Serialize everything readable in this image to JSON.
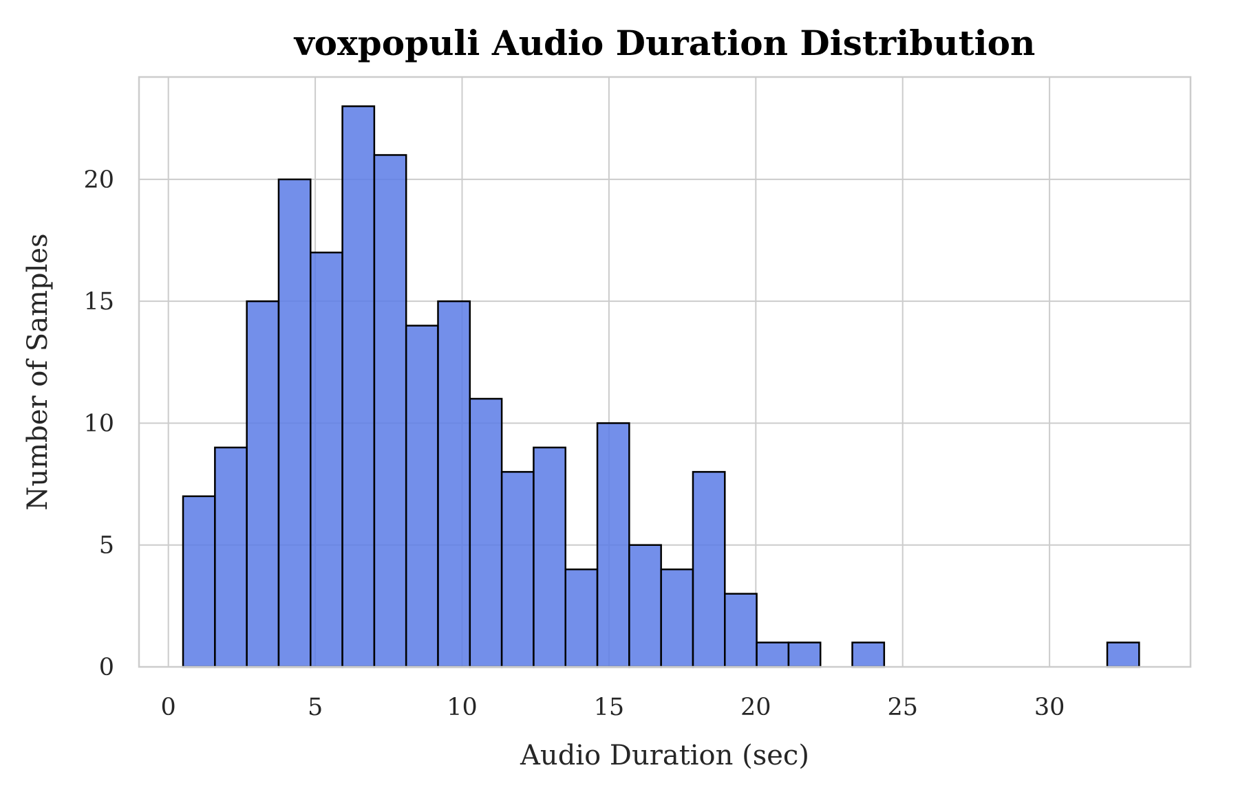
{
  "chart_data": {
    "type": "bar",
    "title": "voxpopuli Audio Duration Distribution",
    "xlabel": "Audio Duration (sec)",
    "ylabel": "Number of Samples",
    "xlim": [
      -1,
      34.8
    ],
    "ylim": [
      0,
      24.2
    ],
    "xticks": [
      0,
      5,
      10,
      15,
      20,
      25,
      30
    ],
    "yticks": [
      0,
      5,
      10,
      15,
      20
    ],
    "grid": true,
    "bar_color": "#5b7be6",
    "edge_color": "#000000",
    "bin_edges": [
      0.5,
      1.585,
      2.67,
      3.755,
      4.84,
      5.925,
      7.01,
      8.095,
      9.18,
      10.265,
      11.35,
      12.435,
      13.52,
      14.605,
      15.69,
      16.775,
      17.86,
      18.945,
      20.03,
      21.115,
      22.2,
      23.285,
      24.37,
      25.455,
      26.54,
      27.625,
      28.71,
      29.795,
      30.88,
      31.965,
      33.05
    ],
    "values": [
      7,
      9,
      15,
      20,
      17,
      23,
      21,
      14,
      15,
      11,
      8,
      9,
      4,
      10,
      5,
      4,
      8,
      3,
      1,
      1,
      0,
      1,
      0,
      0,
      0,
      0,
      0,
      0,
      0,
      1
    ]
  }
}
